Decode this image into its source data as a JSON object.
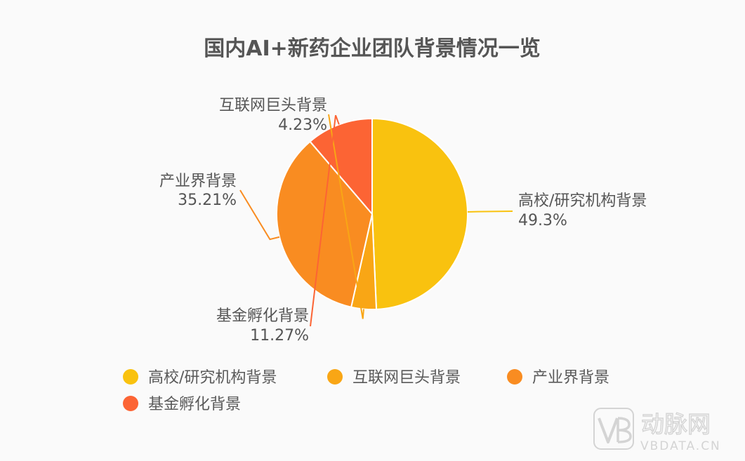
{
  "chart_data": {
    "type": "pie",
    "title": "国内AI+新药企业团队背景情况一览",
    "categories": [
      "高校/研究机构背景",
      "互联网巨头背景",
      "产业界背景",
      "基金孵化背景"
    ],
    "values": [
      49.3,
      4.23,
      35.21,
      11.27
    ],
    "value_labels": [
      "49.3%",
      "4.23%",
      "35.21%",
      "11.27%"
    ],
    "colors": [
      "#f9c20f",
      "#f9a615",
      "#f98c21",
      "#fc6434"
    ],
    "legend_position": "bottom-left"
  },
  "watermark": {
    "logo_text": "动脉网",
    "url_text": "VBDATA.CN"
  }
}
